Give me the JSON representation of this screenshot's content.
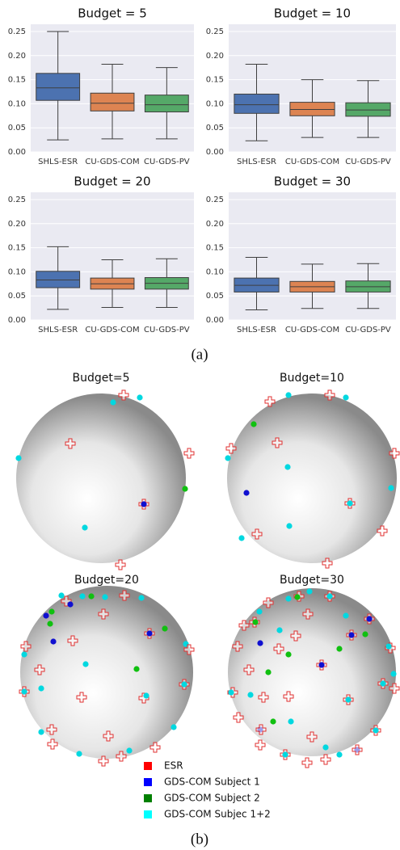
{
  "chart_data": [
    {
      "type": "box",
      "title": "Budget = 5",
      "categories": [
        "SHLS-ESR",
        "CU-GDS-COM",
        "CU-GDS-PV"
      ],
      "boxes": [
        {
          "color": "#4c72b0",
          "whislo": 0.025,
          "q1": 0.107,
          "med": 0.133,
          "q3": 0.163,
          "whishi": 0.25
        },
        {
          "color": "#dd8452",
          "whislo": 0.027,
          "q1": 0.085,
          "med": 0.101,
          "q3": 0.122,
          "whishi": 0.182
        },
        {
          "color": "#55a868",
          "whislo": 0.027,
          "q1": 0.083,
          "med": 0.098,
          "q3": 0.118,
          "whishi": 0.175
        }
      ],
      "ylim": [
        0,
        0.265
      ],
      "yticks": [
        {
          "value": 0,
          "label": "0.00"
        },
        0.05,
        {
          "value": 0.1,
          "label": "0.10"
        },
        0.15,
        {
          "value": 0.2,
          "label": "0.20"
        },
        0.25
      ],
      "grid": true
    },
    {
      "type": "box",
      "title": "Budget = 10",
      "categories": [
        "SHLS-ESR",
        "CU-GDS-COM",
        "CU-GDS-PV"
      ],
      "boxes": [
        {
          "color": "#4c72b0",
          "whislo": 0.023,
          "q1": 0.08,
          "med": 0.098,
          "q3": 0.12,
          "whishi": 0.182
        },
        {
          "color": "#dd8452",
          "whislo": 0.03,
          "q1": 0.075,
          "med": 0.088,
          "q3": 0.103,
          "whishi": 0.15
        },
        {
          "color": "#55a868",
          "whislo": 0.03,
          "q1": 0.074,
          "med": 0.087,
          "q3": 0.102,
          "whishi": 0.148
        }
      ],
      "ylim": [
        0,
        0.265
      ],
      "yticks": [
        {
          "value": 0,
          "label": "0.00"
        },
        0.05,
        {
          "value": 0.1,
          "label": "0.10"
        },
        0.15,
        {
          "value": 0.2,
          "label": "0.20"
        },
        0.25
      ],
      "grid": true
    },
    {
      "type": "box",
      "title": "Budget = 20",
      "categories": [
        "SHLS-ESR",
        "CU-GDS-COM",
        "CU-GDS-PV"
      ],
      "boxes": [
        {
          "color": "#4c72b0",
          "whislo": 0.022,
          "q1": 0.067,
          "med": 0.083,
          "q3": 0.101,
          "whishi": 0.152
        },
        {
          "color": "#dd8452",
          "whislo": 0.026,
          "q1": 0.064,
          "med": 0.075,
          "q3": 0.087,
          "whishi": 0.125
        },
        {
          "color": "#55a868",
          "whislo": 0.026,
          "q1": 0.064,
          "med": 0.076,
          "q3": 0.088,
          "whishi": 0.127
        }
      ],
      "ylim": [
        0,
        0.265
      ],
      "yticks": [
        {
          "value": 0,
          "label": "0.00"
        },
        0.05,
        {
          "value": 0.1,
          "label": "0.10"
        },
        0.15,
        {
          "value": 0.2,
          "label": "0.20"
        },
        0.25
      ],
      "grid": true
    },
    {
      "type": "box",
      "title": "Budget = 30",
      "categories": [
        "SHLS-ESR",
        "CU-GDS-COM",
        "CU-GDS-PV"
      ],
      "boxes": [
        {
          "color": "#4c72b0",
          "whislo": 0.021,
          "q1": 0.058,
          "med": 0.072,
          "q3": 0.087,
          "whishi": 0.13
        },
        {
          "color": "#dd8452",
          "whislo": 0.024,
          "q1": 0.058,
          "med": 0.069,
          "q3": 0.08,
          "whishi": 0.116
        },
        {
          "color": "#55a868",
          "whislo": 0.024,
          "q1": 0.058,
          "med": 0.069,
          "q3": 0.081,
          "whishi": 0.117
        }
      ],
      "ylim": [
        0,
        0.265
      ],
      "yticks": [
        {
          "value": 0,
          "label": "0.00"
        },
        0.05,
        {
          "value": 0.1,
          "label": "0.10"
        },
        0.15,
        {
          "value": 0.2,
          "label": "0.20"
        },
        0.25
      ],
      "grid": true
    }
  ],
  "panel_a_label": "(a)",
  "spheres": {
    "titles": [
      "Budget=5",
      "Budget=10",
      "Budget=20",
      "Budget=30"
    ],
    "legend": [
      {
        "label": "ESR",
        "color": "#ff0000"
      },
      {
        "label": "GDS-COM Subject 1",
        "color": "#0000ff"
      },
      {
        "label": "GDS-COM Subject 2",
        "color": "#008000"
      },
      {
        "label": "GDS-COM Subjec 1+2",
        "color": "#00ffff"
      }
    ]
  },
  "panel_b_label": "(b)"
}
